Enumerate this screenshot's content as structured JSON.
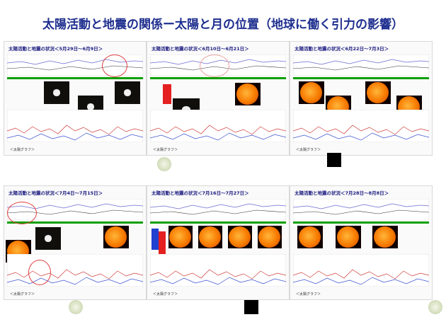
{
  "title": "太陽活動と地震の関係ー太陽と月の位置（地球に働く引力の影響）",
  "panels": [
    {
      "title": "太陽活動と地震の状況＜5月29日〜6月9日＞",
      "footer": "＜太陽グラフ＞"
    },
    {
      "title": "太陽活動と地震の状況＜6月10日〜6月21日＞",
      "footer": "＜太陽グラフ＞"
    },
    {
      "title": "太陽活動と地震の状況＜6月22日〜7月3日＞",
      "footer": "＜太陽グラフ＞"
    },
    {
      "title": "太陽活動と地震の状況＜7月4日〜7月15日＞",
      "footer": "＜太陽グラフ＞"
    },
    {
      "title": "太陽活動と地震の状況＜7月16日〜7月27日＞",
      "footer": "＜太陽グラフ＞"
    },
    {
      "title": "太陽活動と地震の状況＜7月28日〜8月8日＞",
      "footer": "＜太陽グラフ＞"
    }
  ],
  "moon_phases": [
    "full-moon",
    "new-moon",
    "full-moon",
    "new-moon",
    "full-moon"
  ],
  "colors": {
    "title": "#1f2f8f",
    "accent": "#e04040"
  }
}
